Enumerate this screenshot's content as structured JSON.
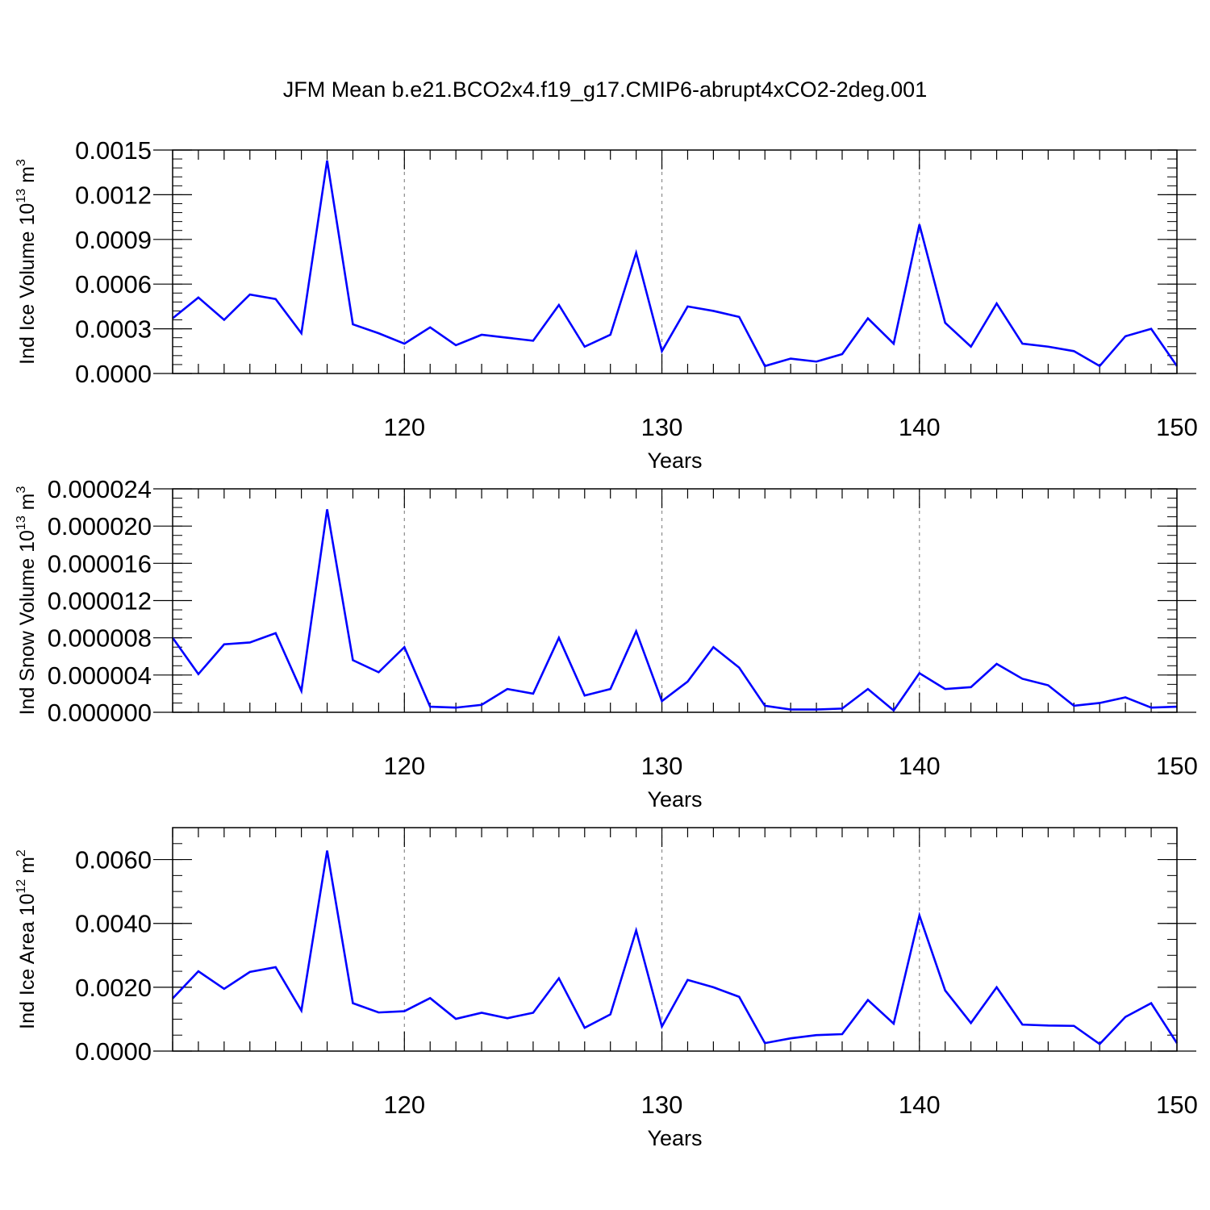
{
  "title": "JFM Mean b.e21.BCO2x4.f19_g17.CMIP6-abrupt4xCO2-2deg.001",
  "colors": {
    "line": "#0000ff",
    "axes": "#000000",
    "grid": "#8c8c8c"
  },
  "chart_data": [
    {
      "type": "line",
      "ylabel": "Ind Ice Volume 10",
      "ylabel_exp": "13",
      "ylabel_unit": " m",
      "ylabel_unit_exp": "3",
      "xlabel": "Years",
      "xlim": [
        111,
        150
      ],
      "ylim": [
        0,
        0.0015
      ],
      "yticks": [
        "0.0000",
        "0.0003",
        "0.0006",
        "0.0009",
        "0.0012",
        "0.0015"
      ],
      "yticks_values": [
        0,
        0.0003,
        0.0006,
        0.0009,
        0.0012,
        0.0015
      ],
      "ymin_step": 6e-05,
      "xticks": [
        "120",
        "130",
        "140",
        "150"
      ],
      "xticks_values": [
        120,
        130,
        140,
        150
      ],
      "grid": "dashed vertical at major x ticks",
      "x": [
        111,
        112,
        113,
        114,
        115,
        116,
        117,
        118,
        119,
        120,
        121,
        122,
        123,
        124,
        125,
        126,
        127,
        128,
        129,
        130,
        131,
        132,
        133,
        134,
        135,
        136,
        137,
        138,
        139,
        140,
        141,
        142,
        143,
        144,
        145,
        146,
        147,
        148,
        149,
        150
      ],
      "y": [
        0.00037,
        0.00051,
        0.00036,
        0.00053,
        0.0005,
        0.00027,
        0.00143,
        0.00033,
        0.00027,
        0.0002,
        0.00031,
        0.00019,
        0.00026,
        0.00024,
        0.00022,
        0.00046,
        0.00018,
        0.00026,
        0.00081,
        0.00015,
        0.00045,
        0.00042,
        0.00038,
        5e-05,
        0.0001,
        8e-05,
        0.00013,
        0.00037,
        0.0002,
        0.001,
        0.00034,
        0.00018,
        0.00047,
        0.0002,
        0.00018,
        0.00015,
        5e-05,
        0.00025,
        0.0003,
        5e-05
      ]
    },
    {
      "type": "line",
      "ylabel": "Ind Snow Volume 10",
      "ylabel_exp": "13",
      "ylabel_unit": " m",
      "ylabel_unit_exp": "3",
      "xlabel": "Years",
      "xlim": [
        111,
        150
      ],
      "ylim": [
        0,
        2.4e-05
      ],
      "yticks": [
        "0.000000",
        "0.000004",
        "0.000008",
        "0.000012",
        "0.000016",
        "0.000020",
        "0.000024"
      ],
      "yticks_values": [
        0,
        4e-06,
        8e-06,
        1.2e-05,
        1.6e-05,
        2e-05,
        2.4e-05
      ],
      "ymin_step": 1e-06,
      "xticks": [
        "120",
        "130",
        "140",
        "150"
      ],
      "xticks_values": [
        120,
        130,
        140,
        150
      ],
      "grid": "dashed vertical at major x ticks",
      "x": [
        111,
        112,
        113,
        114,
        115,
        116,
        117,
        118,
        119,
        120,
        121,
        122,
        123,
        124,
        125,
        126,
        127,
        128,
        129,
        130,
        131,
        132,
        133,
        134,
        135,
        136,
        137,
        138,
        139,
        140,
        141,
        142,
        143,
        144,
        145,
        146,
        147,
        148,
        149,
        150
      ],
      "y": [
        8e-06,
        4.1e-06,
        7.3e-06,
        7.5e-06,
        8.5e-06,
        2.3e-06,
        2.18e-05,
        5.6e-06,
        4.3e-06,
        7e-06,
        6e-07,
        5e-07,
        8e-07,
        2.5e-06,
        2e-06,
        8e-06,
        1.8e-06,
        2.5e-06,
        8.7e-06,
        1.2e-06,
        3.3e-06,
        7e-06,
        4.8e-06,
        7e-07,
        3e-07,
        3e-07,
        4e-07,
        2.5e-06,
        2e-07,
        4.2e-06,
        2.5e-06,
        2.7e-06,
        5.2e-06,
        3.6e-06,
        2.9e-06,
        7e-07,
        1e-06,
        1.6e-06,
        5e-07,
        6e-07
      ]
    },
    {
      "type": "line",
      "ylabel": "Ind Ice Area 10",
      "ylabel_exp": "12",
      "ylabel_unit": " m",
      "ylabel_unit_exp": "2",
      "xlabel": "Years",
      "xlim": [
        111,
        150
      ],
      "ylim": [
        0,
        0.007
      ],
      "yticks": [
        "0.0000",
        "0.0020",
        "0.0040",
        "0.0060"
      ],
      "yticks_values": [
        0,
        0.002,
        0.004,
        0.006
      ],
      "ymin_step": 0.0005,
      "xticks": [
        "120",
        "130",
        "140",
        "150"
      ],
      "xticks_values": [
        120,
        130,
        140,
        150
      ],
      "grid": "dashed vertical at major x ticks",
      "x": [
        111,
        112,
        113,
        114,
        115,
        116,
        117,
        118,
        119,
        120,
        121,
        122,
        123,
        124,
        125,
        126,
        127,
        128,
        129,
        130,
        131,
        132,
        133,
        134,
        135,
        136,
        137,
        138,
        139,
        140,
        141,
        142,
        143,
        144,
        145,
        146,
        147,
        148,
        149,
        150
      ],
      "y": [
        0.00165,
        0.0025,
        0.00195,
        0.00248,
        0.00263,
        0.00127,
        0.00628,
        0.0015,
        0.00121,
        0.00125,
        0.00166,
        0.00101,
        0.0012,
        0.00103,
        0.0012,
        0.00228,
        0.00073,
        0.00115,
        0.00378,
        0.00077,
        0.00223,
        0.002,
        0.0017,
        0.00025,
        0.0004,
        0.0005,
        0.00053,
        0.0016,
        0.00086,
        0.00425,
        0.0019,
        0.00088,
        0.002,
        0.00083,
        0.0008,
        0.00079,
        0.00022,
        0.00107,
        0.0015,
        0.00025
      ]
    }
  ]
}
